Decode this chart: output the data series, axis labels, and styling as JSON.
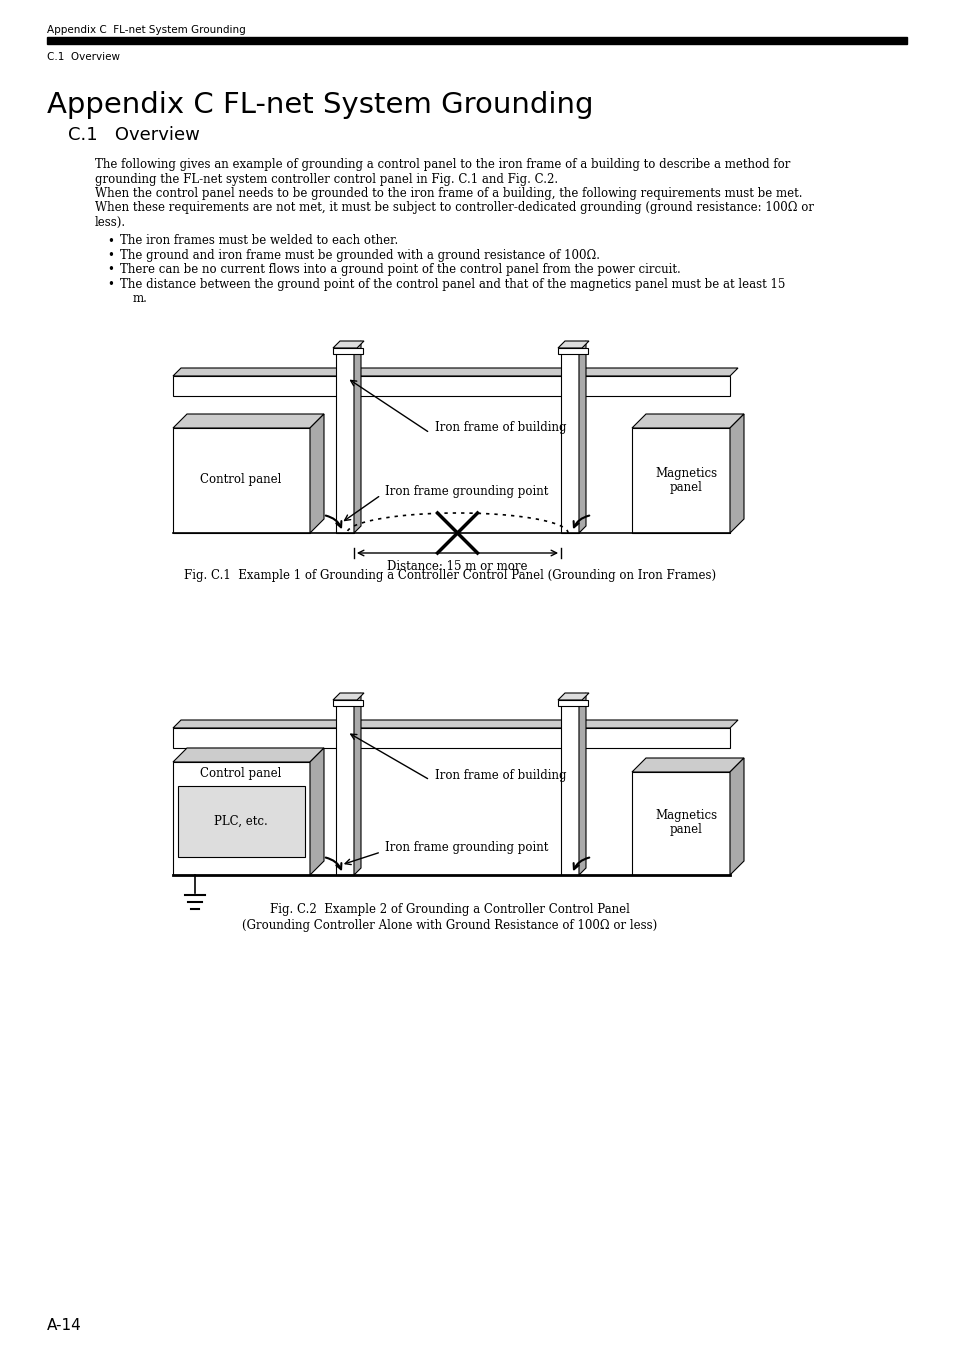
{
  "header_text": "Appendix C  FL-net System Grounding",
  "subheader_text": "C.1  Overview",
  "title": "Appendix C FL-net System Grounding",
  "section": "C.1   Overview",
  "fig1_caption": "Fig. C.1  Example 1 of Grounding a Controller Control Panel (Grounding on Iron Frames)",
  "fig2_caption1": "Fig. C.2  Example 2 of Grounding a Controller Control Panel",
  "fig2_caption2": "(Grounding Controller Alone with Ground Resistance of 100Ω or less)",
  "footer": "A-14",
  "bg_color": "#ffffff"
}
